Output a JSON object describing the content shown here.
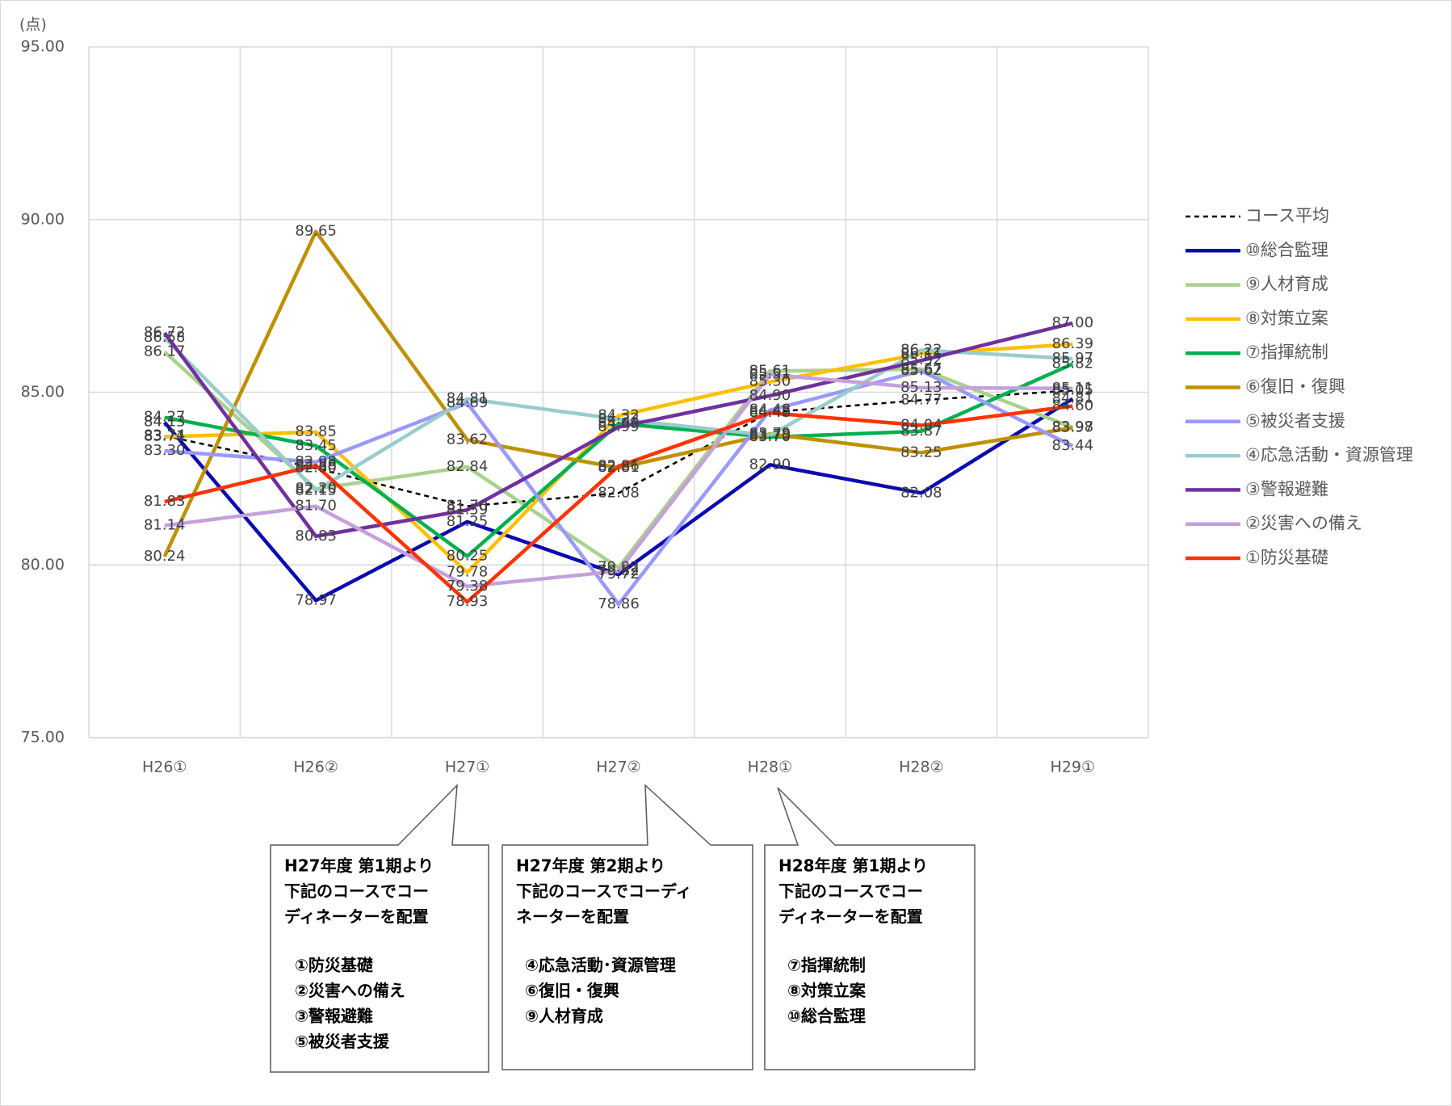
{
  "chart_data": {
    "type": "line",
    "y_label": "(点)",
    "categories": [
      "H26①",
      "H26②",
      "H27①",
      "H27②",
      "H28①",
      "H28②",
      "H29①"
    ],
    "ylim": [
      75,
      95
    ],
    "yticks": [
      {
        "value": 75,
        "label": "75.00"
      },
      {
        "value": 80,
        "label": "80.00"
      },
      {
        "value": 85,
        "label": "85.00"
      },
      {
        "value": 90,
        "label": "90.00"
      },
      {
        "value": 95,
        "label": "95.00"
      }
    ],
    "grid": true,
    "legend": "right",
    "series": [
      {
        "name": "コース平均",
        "color": "#000000",
        "style": "dashed",
        "values": [
          83.74,
          82.8,
          81.7,
          82.08,
          84.42,
          84.77,
          85.05
        ],
        "value_labels": [
          "83.74",
          "82.80",
          "81.70",
          "82.08",
          "84.42",
          "84.77",
          "85.05"
        ]
      },
      {
        "name": "⑩総合監理",
        "color": "#0a0ab0",
        "values": [
          84.13,
          78.97,
          81.25,
          79.72,
          82.9,
          82.08,
          84.81
        ],
        "value_labels": [
          "84.13",
          "78.97",
          "81.25",
          "79.72",
          "82.90",
          "82.08",
          "84.81"
        ]
      },
      {
        "name": "⑨人材育成",
        "color": "#a9d18e",
        "values": [
          86.17,
          82.2,
          82.84,
          79.92,
          85.61,
          85.67,
          83.98
        ],
        "value_labels": [
          "86.17",
          "82.20",
          "82.84",
          "79.92",
          "85.61",
          "85.67",
          "83.98"
        ]
      },
      {
        "name": "⑧対策立案",
        "color": "#ffc000",
        "values": [
          83.71,
          83.85,
          79.78,
          84.32,
          85.3,
          86.11,
          86.39
        ],
        "value_labels": [
          "83.71",
          "83.85",
          "79.78",
          "84.32",
          "85.30",
          "86.11",
          "86.39"
        ]
      },
      {
        "name": "⑦指揮統制",
        "color": "#00b050",
        "values": [
          84.27,
          83.45,
          80.25,
          84.09,
          83.7,
          83.87,
          85.82
        ],
        "value_labels": [
          "84.27",
          "83.45",
          "80.25",
          "84.09",
          "83.70",
          "83.87",
          "85.82"
        ]
      },
      {
        "name": "⑥復旧・復興",
        "color": "#bf9000",
        "values": [
          80.24,
          89.65,
          83.62,
          82.81,
          83.79,
          83.25,
          83.97
        ],
        "value_labels": [
          "80.24",
          "89.65",
          "83.62",
          "82.81",
          "83.79",
          "83.25",
          "83.97"
        ]
      },
      {
        "name": "⑤被災者支援",
        "color": "#9999ff",
        "values": [
          83.3,
          82.98,
          84.69,
          78.86,
          84.48,
          85.62,
          83.44
        ],
        "value_labels": [
          "83.30",
          "82.98",
          "84.69",
          "78.86",
          "84.48",
          "85.62",
          "83.44"
        ]
      },
      {
        "name": "④応急活動・資源管理",
        "color": "#99cccc",
        "values": [
          86.58,
          82.15,
          84.81,
          84.22,
          83.75,
          86.22,
          85.97
        ],
        "value_labels": [
          "86.58",
          "82.15",
          "84.81",
          "84.22",
          "83.75",
          "86.22",
          "85.97"
        ]
      },
      {
        "name": "③警報避難",
        "color": "#7030a0",
        "values": [
          86.72,
          80.83,
          81.59,
          83.99,
          84.9,
          85.92,
          87.0
        ],
        "value_labels": [
          "86.72",
          "80.83",
          "81.59",
          "83.99",
          "84.90",
          "85.92",
          "87.00"
        ]
      },
      {
        "name": "②災害への備え",
        "color": "#c5a0dc",
        "values": [
          81.14,
          81.7,
          79.38,
          79.82,
          85.51,
          85.13,
          85.11
        ],
        "value_labels": [
          "81.14",
          "81.70",
          "79.38",
          "79.82",
          "85.51",
          "85.13",
          "85.11"
        ]
      },
      {
        "name": "①防災基礎",
        "color": "#ff3300",
        "values": [
          81.83,
          82.88,
          78.93,
          82.86,
          84.4,
          84.04,
          84.6
        ],
        "value_labels": [
          "81.83",
          "82.88",
          "78.93",
          "82.86",
          "84.40",
          "84.04",
          "84.60"
        ]
      }
    ],
    "annotations": [
      {
        "text": [
          "H27年度 第1期より",
          "下記のコースでコー",
          "ディネーターを配置"
        ],
        "items": [
          "①防災基礎",
          "②災害への備え",
          "③警報避難",
          "⑤被災者支援"
        ]
      },
      {
        "text": [
          "H27年度 第2期より",
          "下記のコースでコーディ",
          "ネーターを配置"
        ],
        "items": [
          "④応急活動･資源管理",
          "⑥復旧・復興",
          "⑨人材育成"
        ]
      },
      {
        "text": [
          "H28年度 第1期より",
          "下記のコースでコー",
          "ディネーターを配置"
        ],
        "items": [
          "⑦指揮統制",
          "⑧対策立案",
          "⑩総合監理"
        ]
      }
    ]
  }
}
